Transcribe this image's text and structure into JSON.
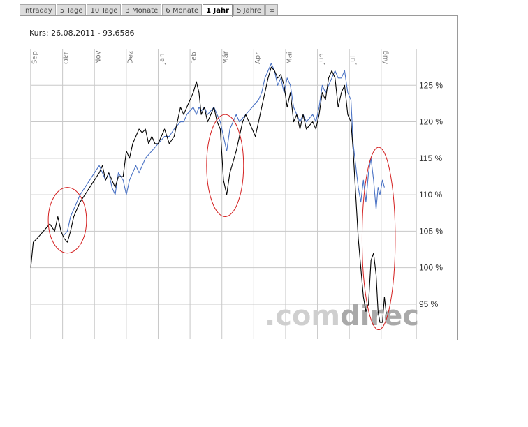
{
  "tabs": [
    {
      "label": "Intraday",
      "active": false
    },
    {
      "label": "5 Tage",
      "active": false
    },
    {
      "label": "10 Tage",
      "active": false
    },
    {
      "label": "3 Monate",
      "active": false
    },
    {
      "label": "6 Monate",
      "active": false
    },
    {
      "label": "1 Jahr",
      "active": true
    },
    {
      "label": "5 Jahre",
      "active": false
    },
    {
      "label": "∞",
      "active": false
    }
  ],
  "kurs_label": "Kurs: 26.08.2011 - 93,6586",
  "watermark": {
    "grey": ".com",
    "dark": "direc"
  },
  "colors": {
    "primary": "#000000",
    "benchmark": "#4a72c4",
    "grid": "#c8c8c8",
    "annotation": "#d42020"
  },
  "chart_data": {
    "type": "line",
    "x_axis_labels": [
      "Sep",
      "Okt",
      "Nov",
      "Dez",
      "Jan",
      "Feb",
      "Mär",
      "Apr",
      "Mai",
      "Jun",
      "Jul",
      "Aug"
    ],
    "y_ticks": [
      95,
      100,
      105,
      110,
      115,
      120,
      125
    ],
    "y_tick_labels": [
      "95 %",
      "100 %",
      "105 %",
      "110 %",
      "115 %",
      "120 %",
      "125 %"
    ],
    "ylim": [
      90.5,
      130
    ],
    "xlim": [
      0,
      12.1
    ],
    "grid": true,
    "y_axis_side": "right",
    "series": [
      {
        "color": "#000000",
        "points": [
          [
            0,
            100
          ],
          [
            0.08,
            103.5
          ],
          [
            0.2,
            104
          ],
          [
            0.4,
            105
          ],
          [
            0.6,
            106
          ],
          [
            0.75,
            105
          ],
          [
            0.85,
            107
          ],
          [
            0.95,
            105
          ],
          [
            1.05,
            104
          ],
          [
            1.15,
            103.5
          ],
          [
            1.25,
            105
          ],
          [
            1.35,
            107
          ],
          [
            1.45,
            108
          ],
          [
            1.55,
            109
          ],
          [
            1.7,
            110
          ],
          [
            1.85,
            111
          ],
          [
            2.0,
            112
          ],
          [
            2.15,
            113
          ],
          [
            2.25,
            114
          ],
          [
            2.35,
            112
          ],
          [
            2.45,
            113
          ],
          [
            2.55,
            112
          ],
          [
            2.65,
            111
          ],
          [
            2.75,
            112.5
          ],
          [
            2.9,
            112.5
          ],
          [
            3.0,
            116
          ],
          [
            3.1,
            115
          ],
          [
            3.2,
            117
          ],
          [
            3.3,
            118
          ],
          [
            3.4,
            119
          ],
          [
            3.5,
            118.5
          ],
          [
            3.6,
            119
          ],
          [
            3.7,
            117
          ],
          [
            3.8,
            118
          ],
          [
            3.9,
            117
          ],
          [
            4.0,
            117
          ],
          [
            4.1,
            118
          ],
          [
            4.2,
            119
          ],
          [
            4.35,
            117
          ],
          [
            4.5,
            118
          ],
          [
            4.6,
            120
          ],
          [
            4.7,
            122
          ],
          [
            4.8,
            121
          ],
          [
            4.9,
            122
          ],
          [
            5.0,
            123
          ],
          [
            5.1,
            124
          ],
          [
            5.2,
            125.5
          ],
          [
            5.28,
            124
          ],
          [
            5.35,
            121
          ],
          [
            5.45,
            122
          ],
          [
            5.55,
            120
          ],
          [
            5.65,
            121
          ],
          [
            5.75,
            122
          ],
          [
            5.85,
            120
          ],
          [
            5.95,
            119
          ],
          [
            6.05,
            112
          ],
          [
            6.15,
            110
          ],
          [
            6.25,
            113
          ],
          [
            6.35,
            114.5
          ],
          [
            6.45,
            116
          ],
          [
            6.55,
            118
          ],
          [
            6.65,
            120
          ],
          [
            6.75,
            121
          ],
          [
            6.85,
            120
          ],
          [
            6.95,
            119
          ],
          [
            7.05,
            118
          ],
          [
            7.15,
            120
          ],
          [
            7.25,
            122
          ],
          [
            7.35,
            124
          ],
          [
            7.45,
            126
          ],
          [
            7.55,
            127.5
          ],
          [
            7.65,
            127
          ],
          [
            7.75,
            126
          ],
          [
            7.85,
            126.5
          ],
          [
            7.95,
            125
          ],
          [
            8.05,
            122
          ],
          [
            8.15,
            124
          ],
          [
            8.25,
            120
          ],
          [
            8.35,
            121
          ],
          [
            8.45,
            119
          ],
          [
            8.55,
            121
          ],
          [
            8.65,
            119
          ],
          [
            8.75,
            119.5
          ],
          [
            8.85,
            120
          ],
          [
            8.95,
            119
          ],
          [
            9.05,
            121
          ],
          [
            9.15,
            124
          ],
          [
            9.25,
            123
          ],
          [
            9.35,
            126
          ],
          [
            9.45,
            127
          ],
          [
            9.55,
            126
          ],
          [
            9.65,
            122
          ],
          [
            9.75,
            124
          ],
          [
            9.85,
            125
          ],
          [
            9.95,
            121
          ],
          [
            10.05,
            120
          ],
          [
            10.12,
            116
          ],
          [
            10.2,
            110
          ],
          [
            10.28,
            104
          ],
          [
            10.36,
            100
          ],
          [
            10.44,
            96
          ],
          [
            10.52,
            94
          ],
          [
            10.6,
            95
          ],
          [
            10.68,
            101
          ],
          [
            10.76,
            102
          ],
          [
            10.84,
            99
          ],
          [
            10.9,
            94
          ],
          [
            10.96,
            92.5
          ],
          [
            11.04,
            92.5
          ],
          [
            11.1,
            96
          ],
          [
            11.16,
            93.7
          ]
        ]
      },
      {
        "color": "#4a72c4",
        "points": [
          [
            1.05,
            104.5
          ],
          [
            1.15,
            105
          ],
          [
            1.25,
            107
          ],
          [
            1.35,
            108
          ],
          [
            1.45,
            109
          ],
          [
            1.55,
            110
          ],
          [
            1.7,
            111
          ],
          [
            1.85,
            112
          ],
          [
            2.0,
            113
          ],
          [
            2.15,
            114
          ],
          [
            2.25,
            113
          ],
          [
            2.35,
            112
          ],
          [
            2.45,
            113
          ],
          [
            2.55,
            111
          ],
          [
            2.65,
            110
          ],
          [
            2.75,
            113
          ],
          [
            2.9,
            112
          ],
          [
            3.0,
            110
          ],
          [
            3.1,
            112
          ],
          [
            3.2,
            113
          ],
          [
            3.3,
            114
          ],
          [
            3.4,
            113
          ],
          [
            3.5,
            114
          ],
          [
            3.6,
            115
          ],
          [
            3.7,
            115.5
          ],
          [
            3.8,
            116
          ],
          [
            3.9,
            116.5
          ],
          [
            4.0,
            117
          ],
          [
            4.1,
            117.5
          ],
          [
            4.2,
            118
          ],
          [
            4.35,
            118
          ],
          [
            4.5,
            119
          ],
          [
            4.6,
            119.5
          ],
          [
            4.7,
            120
          ],
          [
            4.8,
            120
          ],
          [
            4.9,
            121
          ],
          [
            5.0,
            121.5
          ],
          [
            5.1,
            122
          ],
          [
            5.2,
            121
          ],
          [
            5.28,
            122
          ],
          [
            5.35,
            121.5
          ],
          [
            5.45,
            122
          ],
          [
            5.55,
            121
          ],
          [
            5.65,
            121.5
          ],
          [
            5.75,
            122
          ],
          [
            5.85,
            121
          ],
          [
            5.95,
            120
          ],
          [
            6.05,
            118
          ],
          [
            6.15,
            116
          ],
          [
            6.25,
            119
          ],
          [
            6.35,
            120
          ],
          [
            6.45,
            121
          ],
          [
            6.55,
            120
          ],
          [
            6.65,
            120.5
          ],
          [
            6.75,
            121
          ],
          [
            6.85,
            121.5
          ],
          [
            6.95,
            122
          ],
          [
            7.05,
            122.5
          ],
          [
            7.15,
            123
          ],
          [
            7.25,
            124
          ],
          [
            7.35,
            126
          ],
          [
            7.45,
            127
          ],
          [
            7.55,
            128
          ],
          [
            7.65,
            127
          ],
          [
            7.75,
            125
          ],
          [
            7.85,
            126
          ],
          [
            7.95,
            124
          ],
          [
            8.05,
            126
          ],
          [
            8.15,
            125
          ],
          [
            8.25,
            122
          ],
          [
            8.35,
            121
          ],
          [
            8.45,
            120
          ],
          [
            8.55,
            121
          ],
          [
            8.65,
            120
          ],
          [
            8.75,
            120.5
          ],
          [
            8.85,
            121
          ],
          [
            8.95,
            120
          ],
          [
            9.05,
            122
          ],
          [
            9.15,
            125
          ],
          [
            9.25,
            124
          ],
          [
            9.35,
            125
          ],
          [
            9.45,
            126
          ],
          [
            9.55,
            127
          ],
          [
            9.65,
            126
          ],
          [
            9.75,
            126
          ],
          [
            9.85,
            127
          ],
          [
            9.95,
            124
          ],
          [
            10.05,
            123
          ],
          [
            10.12,
            117
          ],
          [
            10.2,
            114
          ],
          [
            10.28,
            111
          ],
          [
            10.36,
            109
          ],
          [
            10.44,
            112
          ],
          [
            10.52,
            109
          ],
          [
            10.6,
            113
          ],
          [
            10.68,
            115
          ],
          [
            10.76,
            112
          ],
          [
            10.84,
            108
          ],
          [
            10.9,
            111
          ],
          [
            10.96,
            110
          ],
          [
            11.04,
            112
          ],
          [
            11.1,
            111
          ]
        ]
      }
    ],
    "annotations": [
      {
        "shape": "ellipse",
        "cx": 1.15,
        "cy": 106.5,
        "rx": 0.6,
        "ry": 4.5
      },
      {
        "shape": "ellipse",
        "cx": 6.1,
        "cy": 114,
        "rx": 0.58,
        "ry": 7.0
      },
      {
        "shape": "ellipse",
        "cx": 10.92,
        "cy": 104,
        "rx": 0.52,
        "ry": 12.5
      }
    ]
  }
}
